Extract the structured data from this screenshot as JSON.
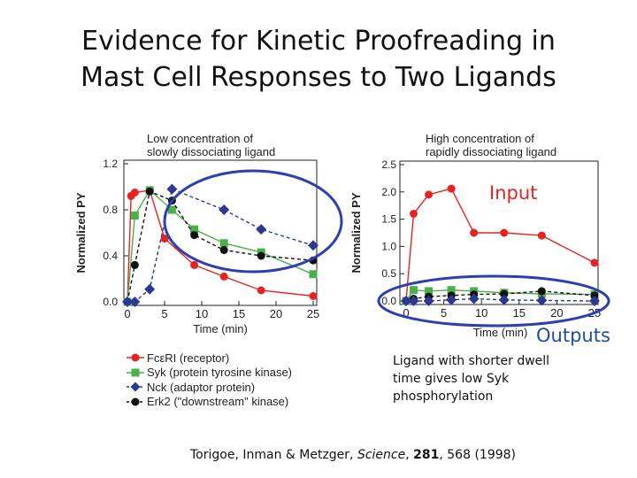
{
  "slide": {
    "title_line1": "Evidence for Kinetic Proofreading in",
    "title_line2": "Mast Cell Responses to Two Ligands",
    "input_label": "Input",
    "outputs_label": "Outputs",
    "note_line1": "Ligand with shorter dwell",
    "note_line2": "time gives low Syk",
    "note_line3": "phosphorylation",
    "citation_authors": "Torigoe, Inman & Metzger, ",
    "citation_journal": "Science",
    "citation_sep": ", ",
    "citation_volume": "281",
    "citation_rest": ", 568 (1998)"
  },
  "colors": {
    "fceri": "#e8231f",
    "syk": "#49b04a",
    "nck": "#2b3990",
    "erk2": "#111111",
    "ellipse": "#2b3fb0"
  },
  "legend": [
    {
      "key": "fceri",
      "marker": "circle",
      "label": "FcεRI (receptor)"
    },
    {
      "key": "syk",
      "marker": "square",
      "label": "Syk (protein tyrosine kinase)"
    },
    {
      "key": "nck",
      "marker": "diamond",
      "label": "Nck (adaptor protein)"
    },
    {
      "key": "erk2",
      "marker": "circle",
      "label": "Erk2 (\"downstream\" kinase)"
    }
  ],
  "chart_data": [
    {
      "type": "line",
      "title_line1": "Low concentration of",
      "title_line2": "slowly dissociating  ligand",
      "xlabel": "Time (min)",
      "ylabel": "Normalized PY",
      "xlim": [
        0,
        25
      ],
      "ylim": [
        0,
        1.2
      ],
      "xticks": [
        0,
        5,
        10,
        15,
        20,
        25
      ],
      "yticks": [
        0.0,
        0.4,
        0.8,
        1.2
      ],
      "ytick_labels": [
        "0.0",
        "0.4",
        "0.8",
        "1.2"
      ],
      "series": [
        {
          "name": "FcεRI (receptor)",
          "key": "fceri",
          "marker": "circle",
          "style": "solid",
          "x": [
            0,
            0.5,
            1,
            3,
            5,
            9,
            13,
            18,
            25
          ],
          "y": [
            0,
            0.92,
            0.95,
            0.97,
            0.55,
            0.32,
            0.22,
            0.1,
            0.05
          ]
        },
        {
          "name": "Syk (protein tyrosine kinase)",
          "key": "syk",
          "marker": "square",
          "style": "solid",
          "x": [
            0,
            1,
            3,
            6,
            9,
            13,
            18,
            25
          ],
          "y": [
            0,
            0.75,
            0.97,
            0.8,
            0.63,
            0.51,
            0.43,
            0.24
          ]
        },
        {
          "name": "Erk2 (\"downstream\") kinase",
          "key": "erk2",
          "marker": "circle",
          "style": "dashed",
          "x": [
            0,
            1,
            3,
            6,
            9,
            13,
            18,
            25
          ],
          "y": [
            0,
            0.32,
            0.96,
            0.88,
            0.58,
            0.45,
            0.4,
            0.36
          ]
        },
        {
          "name": "Nck (adaptor protein)",
          "key": "nck",
          "marker": "diamond",
          "style": "dashed",
          "x": [
            0,
            1,
            3,
            6,
            13,
            18,
            25
          ],
          "y": [
            0,
            0,
            0.11,
            0.98,
            0.8,
            0.63,
            0.49
          ]
        }
      ]
    },
    {
      "type": "line",
      "title_line1": "High concentration of",
      "title_line2": "rapidly dissociating ligand",
      "xlabel": "Time (min)",
      "ylabel": "Normalized PY",
      "xlim": [
        0,
        25
      ],
      "ylim": [
        0,
        2.5
      ],
      "xticks": [
        0,
        5,
        10,
        15,
        20,
        25
      ],
      "yticks": [
        0.0,
        0.5,
        1.0,
        1.5,
        2.0,
        2.5
      ],
      "ytick_labels": [
        "0.0",
        "0.5",
        "1.0",
        "1.5",
        "2.0",
        "2.5"
      ],
      "series": [
        {
          "name": "FcεRI (receptor)",
          "key": "fceri",
          "marker": "circle",
          "style": "solid",
          "x": [
            0,
            1,
            3,
            6,
            9,
            13,
            18,
            25
          ],
          "y": [
            0,
            1.6,
            1.95,
            2.06,
            1.25,
            1.25,
            1.2,
            0.7
          ]
        },
        {
          "name": "Syk (protein tyrosine kinase)",
          "key": "syk",
          "marker": "square",
          "style": "solid",
          "x": [
            0,
            1,
            3,
            6,
            9,
            13,
            18,
            25
          ],
          "y": [
            0,
            0.2,
            0.18,
            0.2,
            0.18,
            0.15,
            0.13,
            0.12
          ]
        },
        {
          "name": "Erk2 (\"downstream\") kinase",
          "key": "erk2",
          "marker": "circle",
          "style": "dashed",
          "x": [
            0,
            1,
            3,
            6,
            9,
            13,
            18,
            25
          ],
          "y": [
            0,
            0.04,
            0.08,
            0.1,
            0.12,
            0.13,
            0.18,
            0.1
          ]
        },
        {
          "name": "Nck (adaptor protein)",
          "key": "nck",
          "marker": "diamond",
          "style": "dashed",
          "x": [
            0,
            1,
            3,
            6,
            9,
            13,
            18,
            25
          ],
          "y": [
            0,
            0.0,
            0.0,
            0.02,
            0.04,
            0.02,
            0.01,
            0.0
          ]
        }
      ]
    }
  ]
}
